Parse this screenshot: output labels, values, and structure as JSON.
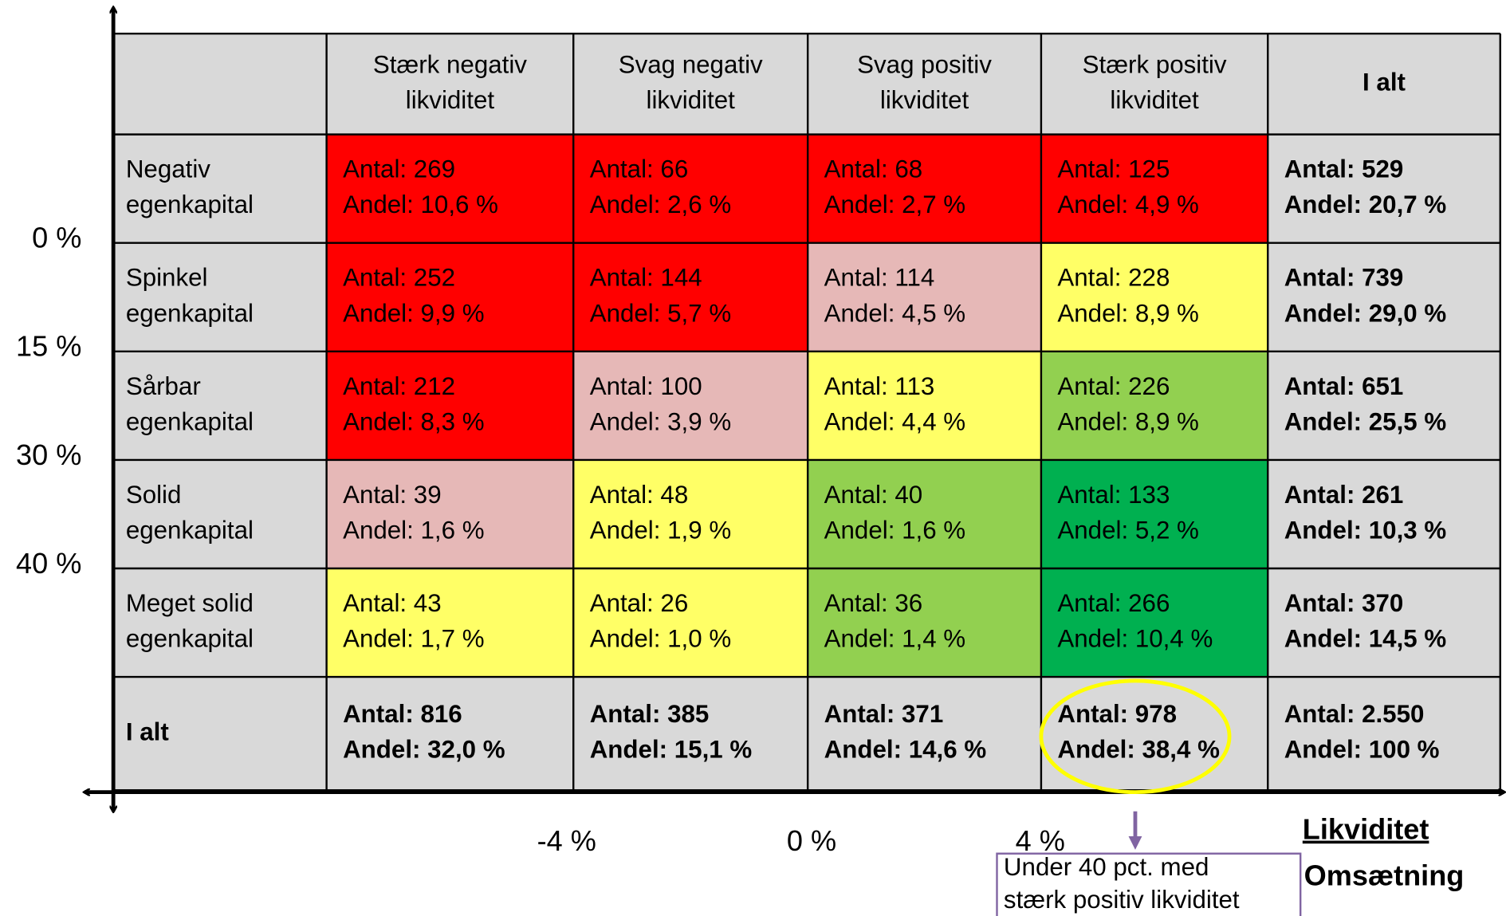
{
  "table": {
    "header": [
      [
        "Stærk negativ",
        "likviditet"
      ],
      [
        "Svag negativ",
        "likviditet"
      ],
      [
        "Svag positiv",
        "likviditet"
      ],
      [
        "Stærk positiv",
        "likviditet"
      ],
      [
        "I alt"
      ]
    ],
    "rows": [
      {
        "label": [
          "Negativ",
          "egenkapital"
        ],
        "cells": [
          {
            "lines": [
              "Antal: 269",
              "Andel: 10,6 %"
            ],
            "color": "#ff0000"
          },
          {
            "lines": [
              "Antal: 66",
              "Andel: 2,6 %"
            ],
            "color": "#ff0000"
          },
          {
            "lines": [
              "Antal: 68",
              "Andel: 2,7 %"
            ],
            "color": "#ff0000"
          },
          {
            "lines": [
              "Antal: 125",
              "Andel: 4,9 %"
            ],
            "color": "#ff0000"
          }
        ],
        "total": [
          "Antal: 529",
          "Andel: 20,7 %"
        ]
      },
      {
        "label": [
          "Spinkel",
          "egenkapital"
        ],
        "cells": [
          {
            "lines": [
              "Antal: 252",
              "Andel: 9,9 %"
            ],
            "color": "#ff0000"
          },
          {
            "lines": [
              "Antal: 144",
              "Andel: 5,7 %"
            ],
            "color": "#ff0000"
          },
          {
            "lines": [
              "Antal: 114",
              "Andel: 4,5 %"
            ],
            "color": "#e6b8b7"
          },
          {
            "lines": [
              "Antal: 228",
              "Andel: 8,9 %"
            ],
            "color": "#ffff66"
          }
        ],
        "total": [
          "Antal: 739",
          "Andel: 29,0 %"
        ]
      },
      {
        "label": [
          "Sårbar",
          "egenkapital"
        ],
        "cells": [
          {
            "lines": [
              "Antal: 212",
              "Andel: 8,3 %"
            ],
            "color": "#ff0000"
          },
          {
            "lines": [
              "Antal: 100",
              "Andel: 3,9 %"
            ],
            "color": "#e6b8b7"
          },
          {
            "lines": [
              "Antal: 113",
              "Andel: 4,4 %"
            ],
            "color": "#ffff66"
          },
          {
            "lines": [
              "Antal: 226",
              "Andel: 8,9 %"
            ],
            "color": "#92d050"
          }
        ],
        "total": [
          "Antal: 651",
          "Andel: 25,5 %"
        ]
      },
      {
        "label": [
          "Solid",
          "egenkapital"
        ],
        "cells": [
          {
            "lines": [
              "Antal: 39",
              "Andel: 1,6 %"
            ],
            "color": "#e6b8b7"
          },
          {
            "lines": [
              "Antal: 48",
              "Andel: 1,9 %"
            ],
            "color": "#ffff66"
          },
          {
            "lines": [
              "Antal: 40",
              "Andel: 1,6 %"
            ],
            "color": "#92d050"
          },
          {
            "lines": [
              "Antal: 133",
              "Andel: 5,2 %"
            ],
            "color": "#00b050"
          }
        ],
        "total": [
          "Antal: 261",
          "Andel: 10,3 %"
        ]
      },
      {
        "label": [
          "Meget solid",
          "egenkapital"
        ],
        "cells": [
          {
            "lines": [
              "Antal: 43",
              "Andel: 1,7 %"
            ],
            "color": "#ffff66"
          },
          {
            "lines": [
              "Antal: 26",
              "Andel: 1,0 %"
            ],
            "color": "#ffff66"
          },
          {
            "lines": [
              "Antal: 36",
              "Andel: 1,4 %"
            ],
            "color": "#92d050"
          },
          {
            "lines": [
              "Antal: 266",
              "Andel: 10,4 %"
            ],
            "color": "#00b050"
          }
        ],
        "total": [
          "Antal: 370",
          "Andel: 14,5 %"
        ]
      }
    ],
    "totals_row": {
      "label": [
        "I alt"
      ],
      "cells": [
        [
          "Antal: 816",
          "Andel: 32,0 %"
        ],
        [
          "Antal: 385",
          "Andel: 15,1 %"
        ],
        [
          "Antal: 371",
          "Andel: 14,6 %"
        ],
        [
          "Antal: 978",
          "Andel: 38,4 %"
        ]
      ],
      "total": [
        "Antal: 2.550",
        "Andel: 100 %"
      ]
    }
  },
  "y_axis_labels": [
    "0 %",
    "15 %",
    "30 %",
    "40 %"
  ],
  "x_axis_labels": [
    "-4 %",
    "0 %",
    "4 %"
  ],
  "x_axis_title": "Likviditet",
  "y_axis_title": "Omsætning",
  "callout": [
    "Under 40 pct. med",
    "stærk positiv likviditet"
  ]
}
